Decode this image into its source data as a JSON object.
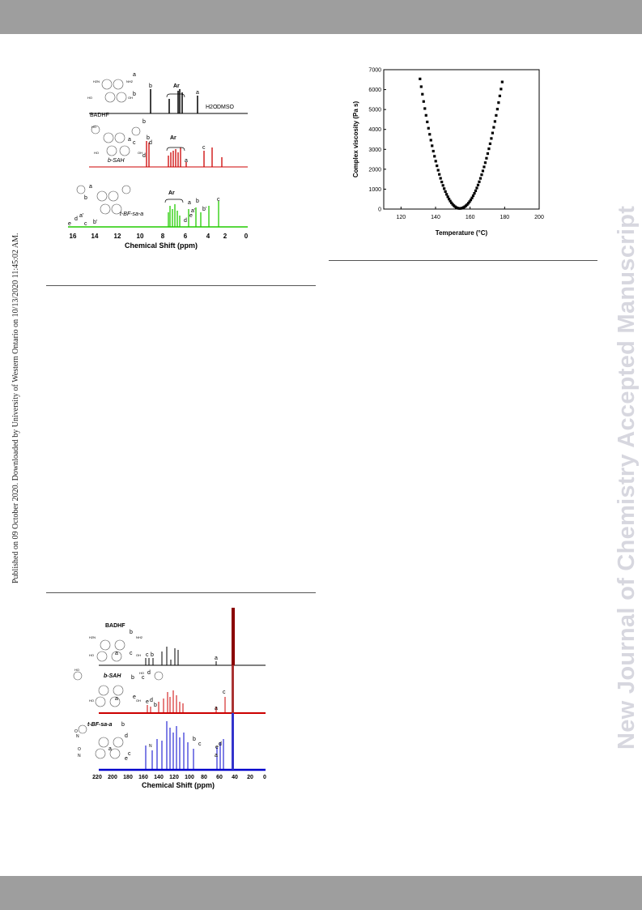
{
  "publication_note": "Published on 09 October 2020. Downloaded by University of Western Ontario on 10/13/2020 11:45:02 AM.",
  "journal_watermark": "New Journal of Chemistry Accepted Manuscript",
  "fig_h_nmr": {
    "traces": [
      {
        "name": "BADHF",
        "color": "#000000",
        "labels": [
          "a",
          "b",
          "Ar",
          "a",
          "b",
          "H2O",
          "DMSO",
          "HO",
          "OH",
          "NH2",
          "H2N"
        ]
      },
      {
        "name": "b-SAH",
        "color": "#cc0000",
        "labels": [
          "Ar",
          "a",
          "b",
          "c",
          "d",
          "b",
          "c",
          "d",
          "a",
          "HO",
          "OH"
        ]
      },
      {
        "name": "t-BF-sa-a",
        "color": "#22cc00",
        "labels": [
          "Ar",
          "a",
          "b",
          "c",
          "d",
          "e",
          "a'",
          "b'",
          "a",
          "b",
          "c",
          "d",
          "e",
          "a'",
          "b'"
        ]
      }
    ],
    "axis_ticks": [
      "16",
      "14",
      "12",
      "10",
      "8",
      "6",
      "4",
      "2",
      "0"
    ],
    "xlabel": "Chemical Shift (ppm)"
  },
  "chart_data": {
    "type": "scatter",
    "xlabel": "Temperature (°C)",
    "ylabel": "Complex viscosity (Pa s)",
    "xlim": [
      110,
      200
    ],
    "ylim": [
      0,
      7000
    ],
    "x_ticks": [
      120,
      140,
      160,
      180,
      200
    ],
    "y_ticks": [
      0,
      1000,
      2000,
      3000,
      4000,
      5000,
      6000,
      7000
    ],
    "minimum": {
      "x": 154,
      "y": 30
    },
    "curve": {
      "x_start": 131,
      "x_end": 179,
      "step": 0.7,
      "left_coef": 12.3,
      "right_coef": 10.5,
      "min_x": 154,
      "min_y": 30
    }
  },
  "fig_c_nmr": {
    "traces": [
      {
        "name": "BADHF",
        "color": "#000000",
        "labels": [
          "BADHF",
          "a",
          "b",
          "c",
          "c",
          "b",
          "H2N",
          "NH2",
          "HO",
          "OH",
          "a"
        ]
      },
      {
        "name": "b-SAH",
        "color": "#cc0000",
        "labels": [
          "b-SAH",
          "a",
          "b",
          "c",
          "d",
          "e",
          "a",
          "b",
          "c",
          "d",
          "e",
          "HO",
          "OH"
        ]
      },
      {
        "name": "t-BF-sa-a",
        "color": "#0000cc",
        "labels": [
          "t-BF-sa-a",
          "a",
          "b",
          "c",
          "d",
          "e",
          "a",
          "b",
          "c",
          "d",
          "e",
          "O",
          "N"
        ]
      }
    ],
    "axis_ticks": [
      "220",
      "200",
      "180",
      "160",
      "140",
      "120",
      "100",
      "80",
      "60",
      "40",
      "20",
      "0"
    ],
    "xlabel": "Chemical Shift (ppm)"
  }
}
